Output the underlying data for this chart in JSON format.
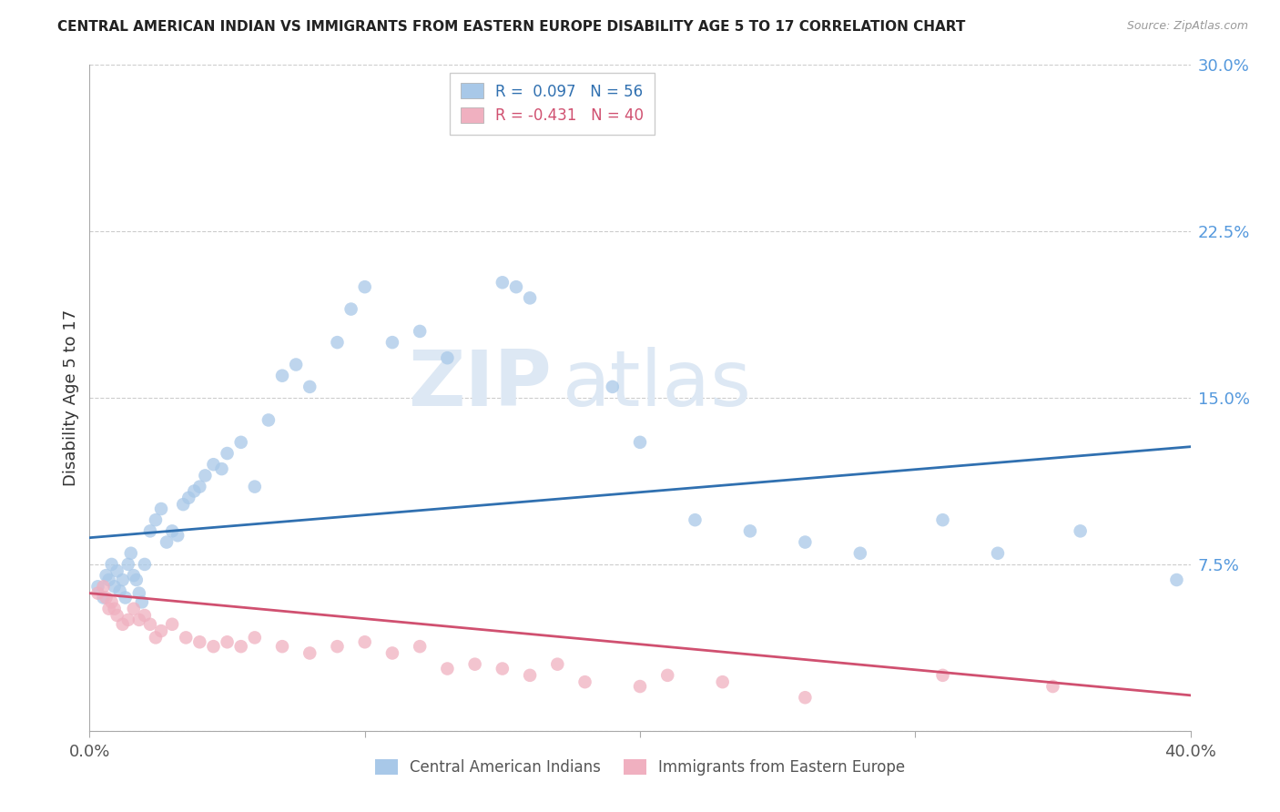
{
  "title": "CENTRAL AMERICAN INDIAN VS IMMIGRANTS FROM EASTERN EUROPE DISABILITY AGE 5 TO 17 CORRELATION CHART",
  "source": "Source: ZipAtlas.com",
  "ylabel": "Disability Age 5 to 17",
  "xlim": [
    0.0,
    0.4
  ],
  "ylim": [
    0.0,
    0.3
  ],
  "yticks": [
    0.0,
    0.075,
    0.15,
    0.225,
    0.3
  ],
  "ytick_labels": [
    "",
    "7.5%",
    "15.0%",
    "22.5%",
    "30.0%"
  ],
  "xticks": [
    0.0,
    0.1,
    0.2,
    0.3,
    0.4
  ],
  "xtick_labels": [
    "0.0%",
    "",
    "",
    "",
    "40.0%"
  ],
  "background_color": "#ffffff",
  "watermark_zip": "ZIP",
  "watermark_atlas": "atlas",
  "color_blue": "#a8c8e8",
  "color_pink": "#f0b0c0",
  "line_blue": "#3070b0",
  "line_pink": "#d05070",
  "blue_scatter_x": [
    0.003,
    0.005,
    0.006,
    0.007,
    0.008,
    0.009,
    0.01,
    0.011,
    0.012,
    0.013,
    0.014,
    0.015,
    0.016,
    0.017,
    0.018,
    0.019,
    0.02,
    0.022,
    0.024,
    0.026,
    0.028,
    0.03,
    0.032,
    0.034,
    0.036,
    0.038,
    0.04,
    0.042,
    0.045,
    0.048,
    0.05,
    0.055,
    0.06,
    0.065,
    0.07,
    0.075,
    0.08,
    0.09,
    0.095,
    0.1,
    0.11,
    0.12,
    0.13,
    0.15,
    0.155,
    0.16,
    0.19,
    0.2,
    0.22,
    0.24,
    0.26,
    0.28,
    0.31,
    0.33,
    0.36,
    0.395
  ],
  "blue_scatter_y": [
    0.065,
    0.06,
    0.07,
    0.068,
    0.075,
    0.065,
    0.072,
    0.063,
    0.068,
    0.06,
    0.075,
    0.08,
    0.07,
    0.068,
    0.062,
    0.058,
    0.075,
    0.09,
    0.095,
    0.1,
    0.085,
    0.09,
    0.088,
    0.102,
    0.105,
    0.108,
    0.11,
    0.115,
    0.12,
    0.118,
    0.125,
    0.13,
    0.11,
    0.14,
    0.16,
    0.165,
    0.155,
    0.175,
    0.19,
    0.2,
    0.175,
    0.18,
    0.168,
    0.202,
    0.2,
    0.195,
    0.155,
    0.13,
    0.095,
    0.09,
    0.085,
    0.08,
    0.095,
    0.08,
    0.09,
    0.068
  ],
  "pink_scatter_x": [
    0.003,
    0.005,
    0.006,
    0.007,
    0.008,
    0.009,
    0.01,
    0.012,
    0.014,
    0.016,
    0.018,
    0.02,
    0.022,
    0.024,
    0.026,
    0.03,
    0.035,
    0.04,
    0.045,
    0.05,
    0.055,
    0.06,
    0.07,
    0.08,
    0.09,
    0.1,
    0.11,
    0.12,
    0.13,
    0.14,
    0.15,
    0.16,
    0.17,
    0.18,
    0.2,
    0.21,
    0.23,
    0.26,
    0.31,
    0.35
  ],
  "pink_scatter_y": [
    0.062,
    0.065,
    0.06,
    0.055,
    0.058,
    0.055,
    0.052,
    0.048,
    0.05,
    0.055,
    0.05,
    0.052,
    0.048,
    0.042,
    0.045,
    0.048,
    0.042,
    0.04,
    0.038,
    0.04,
    0.038,
    0.042,
    0.038,
    0.035,
    0.038,
    0.04,
    0.035,
    0.038,
    0.028,
    0.03,
    0.028,
    0.025,
    0.03,
    0.022,
    0.02,
    0.025,
    0.022,
    0.015,
    0.025,
    0.02
  ],
  "blue_line_y_start": 0.087,
  "blue_line_y_end": 0.128,
  "pink_line_y_start": 0.062,
  "pink_line_y_end": 0.016
}
